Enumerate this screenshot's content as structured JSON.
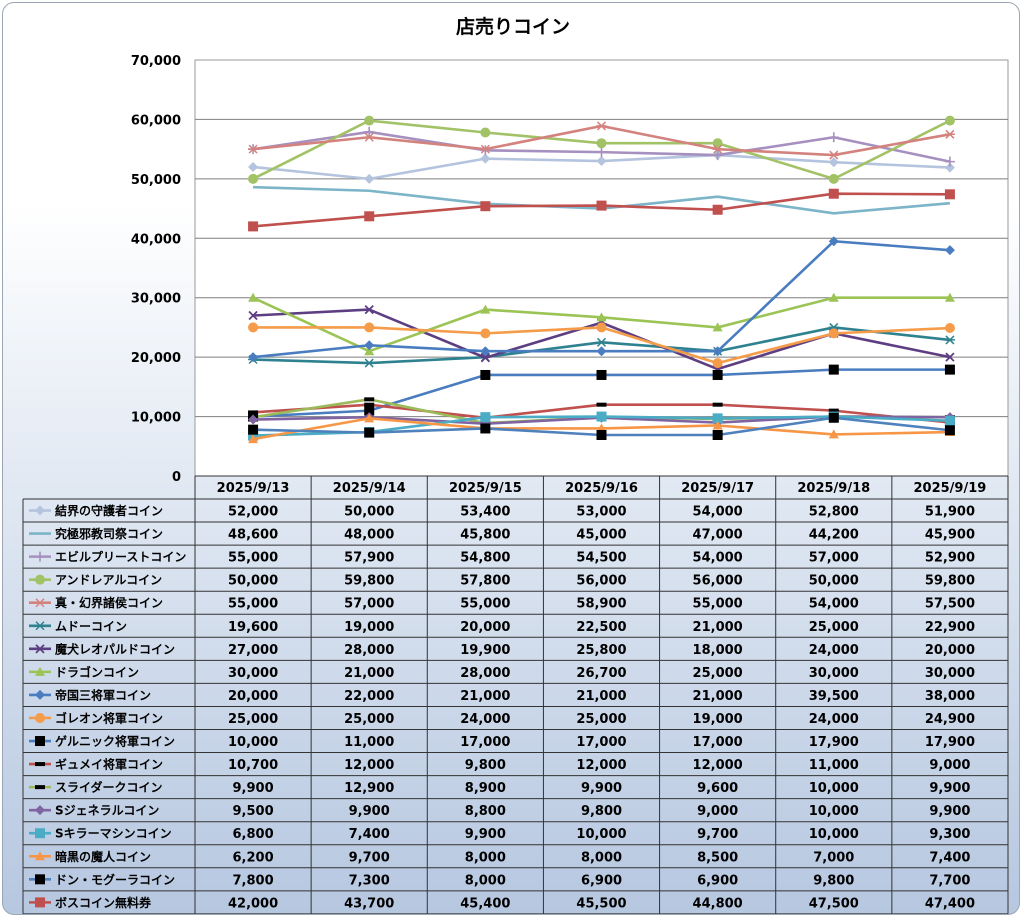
{
  "chart_data": {
    "type": "line",
    "title": "店売りコイン",
    "xlabel": "",
    "ylabel": "",
    "ylim": [
      0,
      70000
    ],
    "y_ticks": [
      "0",
      "10,000",
      "20,000",
      "30,000",
      "40,000",
      "50,000",
      "60,000",
      "70,000"
    ],
    "grid": "horizontal",
    "legend": "data-table",
    "categories": [
      "2025/9/13",
      "2025/9/14",
      "2025/9/15",
      "2025/9/16",
      "2025/9/17",
      "2025/9/18",
      "2025/9/19"
    ],
    "series": [
      {
        "name": "結界の守護者コイン",
        "color": "#b4c3de",
        "marker": "diamond",
        "values": [
          52000,
          50000,
          53400,
          53000,
          54000,
          52800,
          51900
        ],
        "labels": [
          "52,000",
          "50,000",
          "53,400",
          "53,000",
          "54,000",
          "52,800",
          "51,900"
        ]
      },
      {
        "name": "究極邪教司祭コイン",
        "color": "#7cb4c8",
        "marker": "none",
        "values": [
          48600,
          48000,
          45800,
          45000,
          47000,
          44200,
          45900
        ],
        "labels": [
          "48,600",
          "48,000",
          "45,800",
          "45,000",
          "47,000",
          "44,200",
          "45,900"
        ]
      },
      {
        "name": "エビルプリーストコイン",
        "color": "#a690bf",
        "marker": "plus",
        "values": [
          55000,
          57900,
          54800,
          54500,
          54000,
          57000,
          52900
        ],
        "labels": [
          "55,000",
          "57,900",
          "54,800",
          "54,500",
          "54,000",
          "57,000",
          "52,900"
        ]
      },
      {
        "name": "アンドレアルコイン",
        "color": "#a2c266",
        "marker": "circle",
        "values": [
          50000,
          59800,
          57800,
          56000,
          56000,
          50000,
          59800
        ],
        "labels": [
          "50,000",
          "59,800",
          "57,800",
          "56,000",
          "56,000",
          "50,000",
          "59,800"
        ]
      },
      {
        "name": "真・幻界諸侯コイン",
        "color": "#d4827e",
        "marker": "asterisk",
        "values": [
          55000,
          57000,
          55000,
          58900,
          55000,
          54000,
          57500
        ],
        "labels": [
          "55,000",
          "57,000",
          "55,000",
          "58,900",
          "55,000",
          "54,000",
          "57,500"
        ]
      },
      {
        "name": "ムドーコイン",
        "color": "#2e8290",
        "marker": "asterisk",
        "values": [
          19600,
          19000,
          20000,
          22500,
          21000,
          25000,
          22900
        ],
        "labels": [
          "19,600",
          "19,000",
          "20,000",
          "22,500",
          "21,000",
          "25,000",
          "22,900"
        ]
      },
      {
        "name": "魔犬レオパルドコイン",
        "color": "#5e3e82",
        "marker": "x",
        "values": [
          27000,
          28000,
          19900,
          25800,
          18000,
          24000,
          20000
        ],
        "labels": [
          "27,000",
          "28,000",
          "19,900",
          "25,800",
          "18,000",
          "24,000",
          "20,000"
        ]
      },
      {
        "name": "ドラゴンコイン",
        "color": "#9bc455",
        "marker": "triangle",
        "values": [
          30000,
          21000,
          28000,
          26700,
          25000,
          30000,
          30000
        ],
        "labels": [
          "30,000",
          "21,000",
          "28,000",
          "26,700",
          "25,000",
          "30,000",
          "30,000"
        ]
      },
      {
        "name": "帝国三将軍コイン",
        "color": "#4a7dc0",
        "marker": "diamond",
        "values": [
          20000,
          22000,
          21000,
          21000,
          21000,
          39500,
          38000
        ],
        "labels": [
          "20,000",
          "22,000",
          "21,000",
          "21,000",
          "21,000",
          "39,500",
          "38,000"
        ]
      },
      {
        "name": "ゴレオン将軍コイン",
        "color": "#f59c4a",
        "marker": "circle",
        "values": [
          25000,
          25000,
          24000,
          25000,
          19000,
          24000,
          24900
        ],
        "labels": [
          "25,000",
          "25,000",
          "24,000",
          "25,000",
          "19,000",
          "24,000",
          "24,900"
        ]
      },
      {
        "name": "ゲルニック将軍コイン",
        "color": "#4a7dc0",
        "marker": "square-black",
        "values": [
          10000,
          11000,
          17000,
          17000,
          17000,
          17900,
          17900
        ],
        "labels": [
          "10,000",
          "11,000",
          "17,000",
          "17,000",
          "17,000",
          "17,900",
          "17,900"
        ]
      },
      {
        "name": "ギュメイ将軍コイン",
        "color": "#c0504d",
        "marker": "dash-black",
        "values": [
          10700,
          12000,
          9800,
          12000,
          12000,
          11000,
          9000
        ],
        "labels": [
          "10,700",
          "12,000",
          "9,800",
          "12,000",
          "12,000",
          "11,000",
          "9,000"
        ]
      },
      {
        "name": "スライダークコイン",
        "color": "#9bbb59",
        "marker": "dash-black",
        "values": [
          9900,
          12900,
          8900,
          9900,
          9600,
          10000,
          9900
        ],
        "labels": [
          "9,900",
          "12,900",
          "8,900",
          "9,900",
          "9,600",
          "10,000",
          "9,900"
        ]
      },
      {
        "name": "Sジェネラルコイン",
        "color": "#8064a2",
        "marker": "diamond",
        "values": [
          9500,
          9900,
          8800,
          9800,
          9000,
          10000,
          9900
        ],
        "labels": [
          "9,500",
          "9,900",
          "8,800",
          "9,800",
          "9,000",
          "10,000",
          "9,900"
        ]
      },
      {
        "name": "Sキラーマシンコイン",
        "color": "#4bacc6",
        "marker": "square",
        "values": [
          6800,
          7400,
          9900,
          10000,
          9700,
          10000,
          9300
        ],
        "labels": [
          "6,800",
          "7,400",
          "9,900",
          "10,000",
          "9,700",
          "10,000",
          "9,300"
        ]
      },
      {
        "name": "暗黒の魔人コイン",
        "color": "#f79646",
        "marker": "triangle",
        "values": [
          6200,
          9700,
          8000,
          8000,
          8500,
          7000,
          7400
        ],
        "labels": [
          "6,200",
          "9,700",
          "8,000",
          "8,000",
          "8,500",
          "7,000",
          "7,400"
        ]
      },
      {
        "name": "ドン・モグーラコイン",
        "color": "#4f81bd",
        "marker": "square-black",
        "values": [
          7800,
          7300,
          8000,
          6900,
          6900,
          9800,
          7700
        ],
        "labels": [
          "7,800",
          "7,300",
          "8,000",
          "6,900",
          "6,900",
          "9,800",
          "7,700"
        ]
      },
      {
        "name": "ボスコイン無料券",
        "color": "#c0504d",
        "marker": "square",
        "values": [
          42000,
          43700,
          45400,
          45500,
          44800,
          47500,
          47400
        ],
        "labels": [
          "42,000",
          "43,700",
          "45,400",
          "45,500",
          "44,800",
          "47,500",
          "47,400"
        ]
      }
    ]
  }
}
